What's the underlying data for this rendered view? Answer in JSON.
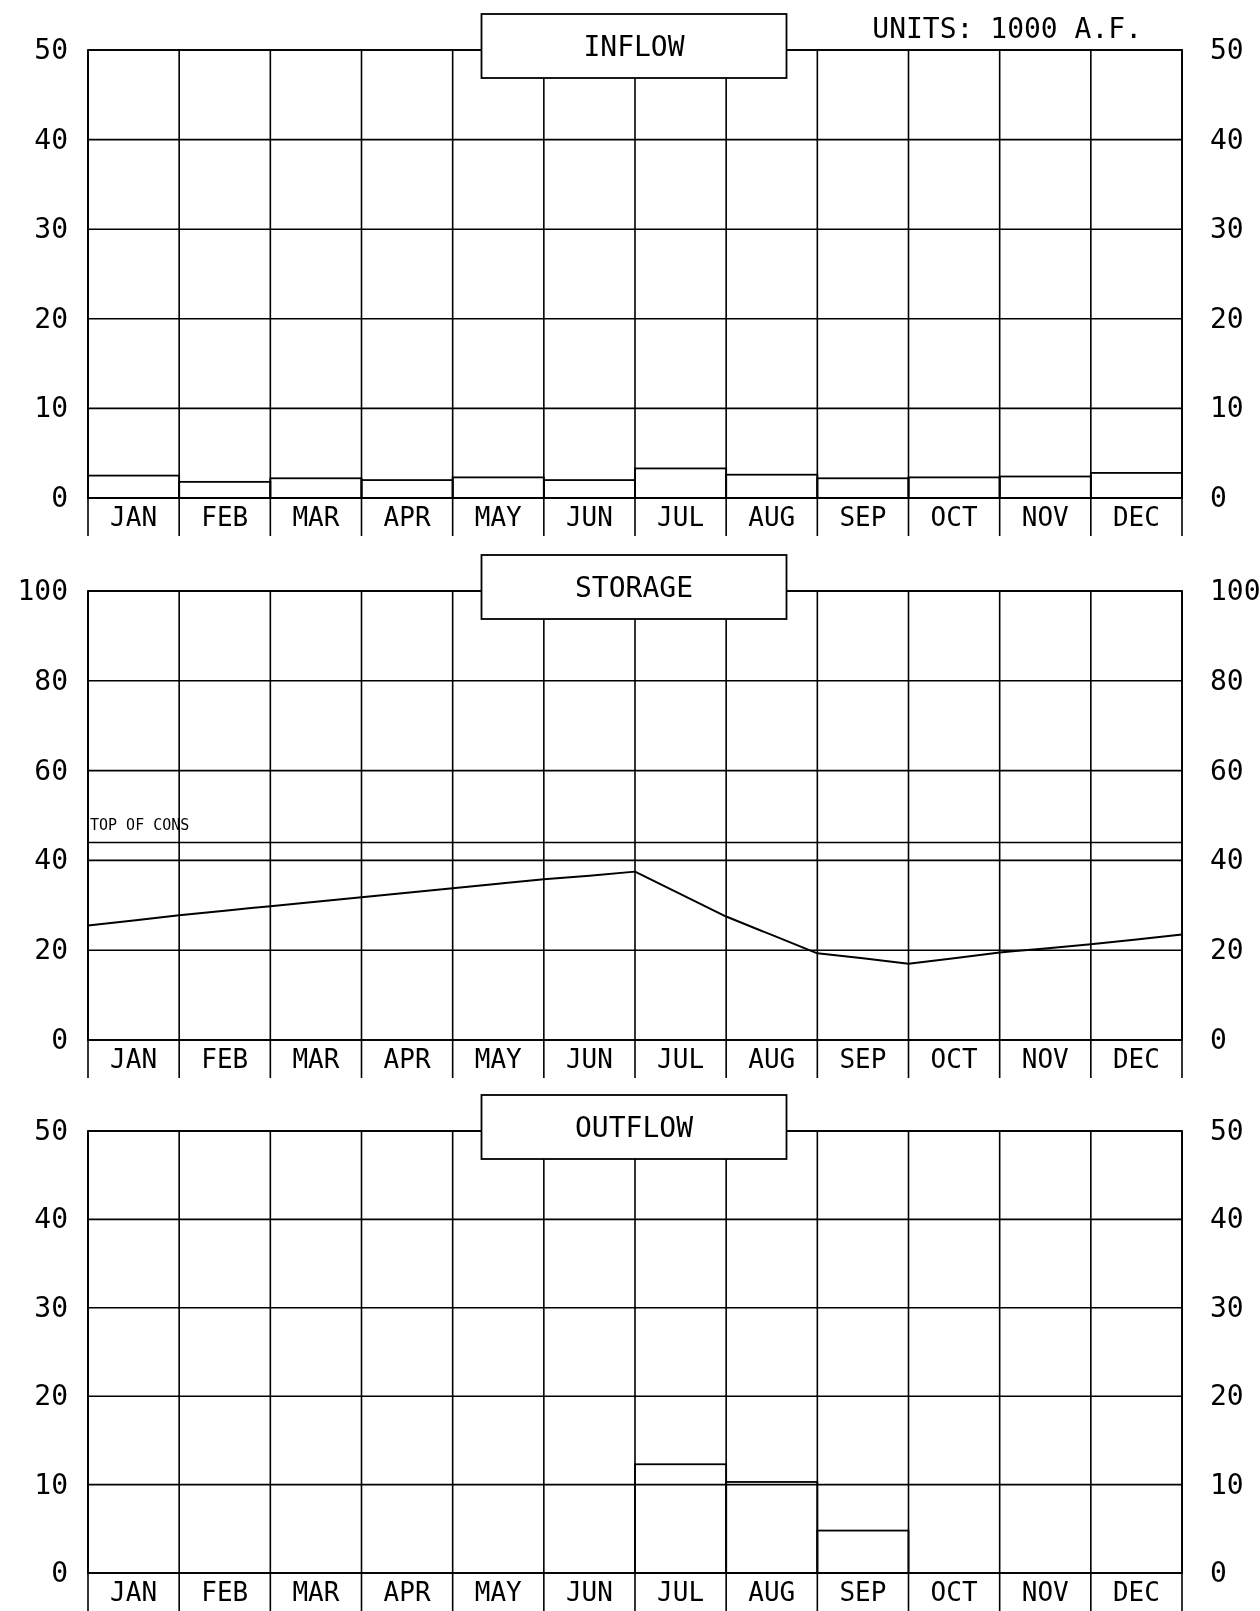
{
  "chart_data": [
    {
      "type": "bar",
      "title": "INFLOW",
      "annotations": [
        "UNITS: 1000 A.F."
      ],
      "categories": [
        "JAN",
        "FEB",
        "MAR",
        "APR",
        "MAY",
        "JUN",
        "JUL",
        "AUG",
        "SEP",
        "OCT",
        "NOV",
        "DEC"
      ],
      "values": [
        2.5,
        1.8,
        2.2,
        2.0,
        2.3,
        2.0,
        3.3,
        2.6,
        2.2,
        2.3,
        2.4,
        2.8
      ],
      "color": "#000000",
      "ylim": [
        0,
        50
      ],
      "yticks": [
        0,
        10,
        20,
        30,
        40,
        50
      ],
      "y2lim": [
        0,
        50
      ],
      "y2ticks": [
        0,
        10,
        20,
        30,
        40,
        50
      ],
      "grid": "y"
    },
    {
      "type": "line",
      "title": "STORAGE",
      "categories": [
        null,
        "JAN",
        null,
        "FEB",
        null,
        "MAR",
        null,
        "APR",
        null,
        "MAY",
        null,
        "JUN",
        null,
        "JUL",
        null,
        "AUG",
        null,
        "SEP",
        null,
        "OCT",
        null,
        "NOV",
        null,
        "DEC",
        null
      ],
      "values": [
        25.5,
        26.6,
        27.8,
        28.8,
        29.8,
        30.8,
        31.8,
        32.8,
        33.8,
        34.8,
        35.8,
        36.6,
        37.5,
        32.5,
        27.5,
        23.4,
        19.3,
        18.2,
        17,
        18.2,
        19.5,
        20.4,
        21.3,
        22.4,
        23.5
      ],
      "color": "#000000",
      "ylim": [
        0,
        100
      ],
      "yticks": [
        0,
        20,
        40,
        60,
        80,
        100
      ],
      "y2lim": [
        0,
        100
      ],
      "y2ticks": [
        0,
        20,
        40,
        60,
        80,
        100
      ],
      "grid": true,
      "ref_lines": [
        {
          "axis": "y",
          "value": 44,
          "label": "TOP OF CONS"
        }
      ]
    },
    {
      "type": "bar",
      "title": "OUTFLOW",
      "categories": [
        "JAN",
        "FEB",
        "MAR",
        "APR",
        "MAY",
        "JUN",
        "JUL",
        "AUG",
        "SEP",
        "OCT",
        "NOV",
        "DEC"
      ],
      "values": [
        0,
        0,
        0,
        0,
        0,
        0,
        12.3,
        10.3,
        4.8,
        0,
        0,
        0
      ],
      "color": "#000000",
      "ylim": [
        0,
        50
      ],
      "yticks": [
        0,
        10,
        20,
        30,
        40,
        50
      ],
      "y2lim": [
        0,
        50
      ],
      "y2ticks": [
        0,
        10,
        20,
        30,
        40,
        50
      ],
      "grid": "y"
    }
  ]
}
